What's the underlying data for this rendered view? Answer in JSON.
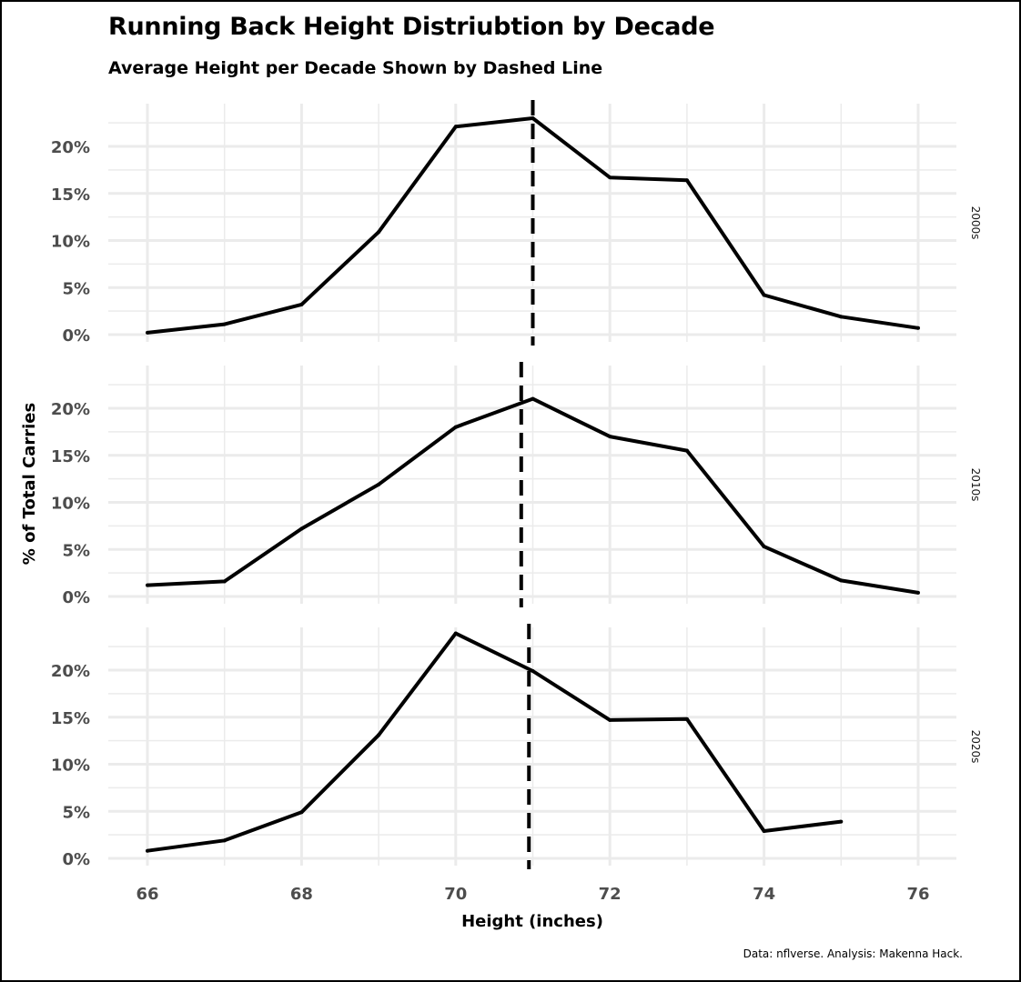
{
  "chart_data": {
    "type": "line",
    "title": "Running Back Height Distriubtion by Decade",
    "subtitle": "Average Height per Decade Shown by Dashed Line",
    "xlabel": "Height (inches)",
    "ylabel": "% of Total Carries",
    "caption": "Data: nflverse. Analysis: Makenna Hack.",
    "xlim": [
      65.5,
      76.5
    ],
    "ylim": [
      0,
      24
    ],
    "x_ticks": [
      66,
      68,
      70,
      72,
      74,
      76
    ],
    "x_tick_labels": [
      "66",
      "68",
      "70",
      "72",
      "74",
      "76"
    ],
    "y_ticks": [
      0,
      5,
      10,
      15,
      20
    ],
    "y_tick_labels": [
      "0%",
      "5%",
      "10%",
      "15%",
      "20%"
    ],
    "grid": true,
    "legend": "none",
    "line_color": "#000000",
    "grid_color": "#ebebeb",
    "facets": [
      {
        "name": "2000s",
        "mean_height": 71.0,
        "x": [
          66,
          67,
          68,
          69,
          70,
          71,
          72,
          73,
          74,
          75,
          76
        ],
        "y": [
          0.2,
          1.1,
          3.2,
          10.9,
          22.1,
          23.0,
          16.7,
          16.4,
          4.2,
          1.9,
          0.7
        ]
      },
      {
        "name": "2010s",
        "mean_height": 70.85,
        "x": [
          66,
          67,
          68,
          69,
          70,
          71,
          72,
          73,
          74,
          75,
          76
        ],
        "y": [
          1.2,
          1.6,
          7.2,
          11.9,
          18.0,
          21.0,
          17.0,
          15.5,
          5.3,
          1.7,
          0.4
        ]
      },
      {
        "name": "2020s",
        "mean_height": 70.95,
        "x": [
          66,
          67,
          68,
          69,
          70,
          71,
          72,
          73,
          74,
          75
        ],
        "y": [
          0.8,
          1.9,
          4.9,
          13.1,
          23.9,
          19.9,
          14.7,
          14.8,
          2.9,
          3.9
        ]
      }
    ]
  }
}
